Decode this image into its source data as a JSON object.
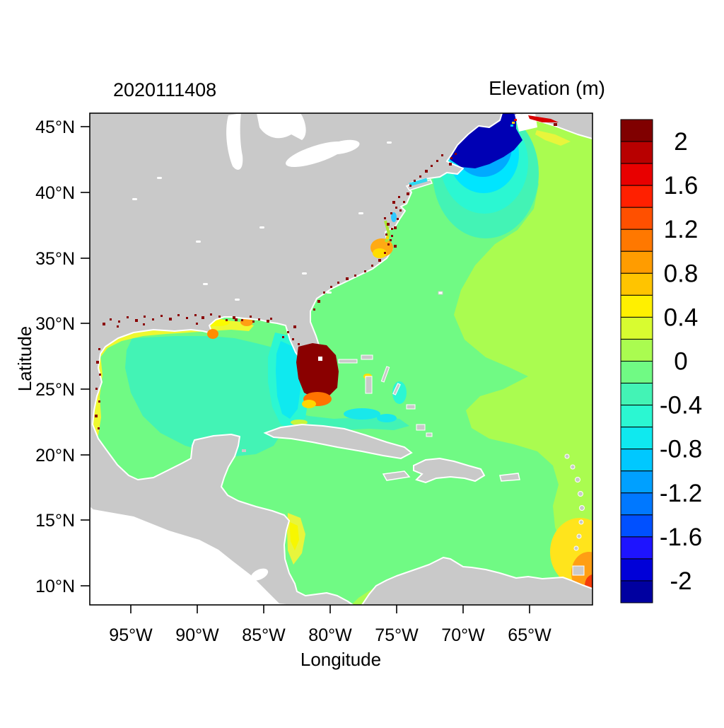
{
  "figure": {
    "timestamp_title": "2020111408",
    "colorbar_title": "Elevation (m)"
  },
  "axes": {
    "x": {
      "label": "Longitude",
      "tick_labels": [
        "95°W",
        "90°W",
        "85°W",
        "80°W",
        "75°W",
        "70°W",
        "65°W"
      ]
    },
    "y": {
      "label": "Latitude",
      "tick_labels": [
        "45°N",
        "40°N",
        "35°N",
        "30°N",
        "25°N",
        "20°N",
        "15°N",
        "10°N"
      ]
    }
  },
  "colorbar": {
    "tick_labels": [
      "2",
      "1.6",
      "1.2",
      "0.8",
      "0.4",
      "0",
      "-0.4",
      "-0.8",
      "-1.2",
      "-1.6",
      "-2"
    ],
    "value_range": [
      -2.2,
      2.2
    ],
    "interval": 0.2,
    "segment_colors_top_to_bottom": [
      "#800000",
      "#B80000",
      "#E80000",
      "#FF2000",
      "#FF5000",
      "#FF7800",
      "#FF9C00",
      "#FFC400",
      "#FFF000",
      "#D8FC30",
      "#AAFC50",
      "#70FA84",
      "#43F3B5",
      "#2BF7D2",
      "#0FE9EF",
      "#00C8FF",
      "#00A0FF",
      "#0078FF",
      "#0050FF",
      "#1E14FF",
      "#0000D8",
      "#0000A0"
    ]
  },
  "colors": {
    "land": "#c9c9c9",
    "outside_domain": "#ffffff",
    "frame": "#000000",
    "atlantic": "#AAFC50",
    "coastal_band": "#70FA84",
    "gulf_interior": "#43F3B5",
    "shelf_cyan": "#0FE9EF",
    "surge_low_navy": "#0000B4",
    "flood_high_darkred": "#8A0000"
  },
  "chart_data": {
    "type": "heatmap",
    "title": "Elevation (m)",
    "timestamp": "2020111408",
    "xlabel": "Longitude",
    "ylabel": "Latitude",
    "x_ticks": [
      "95°W",
      "90°W",
      "85°W",
      "80°W",
      "75°W",
      "70°W",
      "65°W"
    ],
    "y_ticks": [
      "45°N",
      "40°N",
      "35°N",
      "30°N",
      "25°N",
      "20°N",
      "15°N",
      "10°N"
    ],
    "lon_range_deg_west": [
      98.1,
      60.3
    ],
    "lat_range_deg_north": [
      8.5,
      46.0
    ],
    "color_levels_m": {
      "min": -2.2,
      "max": 2.2,
      "step": 0.2
    },
    "legend_position": "right",
    "land_shown_as": "gray",
    "out_of_model_domain_shown_as": "white",
    "regions": [
      {
        "name": "open Atlantic (east/northeast)",
        "approx_value_m": 0.1
      },
      {
        "name": "western Atlantic coastal band",
        "approx_value_m": -0.1
      },
      {
        "name": "Caribbean Sea",
        "approx_value_m": -0.1
      },
      {
        "name": "Gulf of Mexico interior",
        "approx_value_m": -0.3
      },
      {
        "name": "Bay of Campeche",
        "approx_value_m": -0.1
      },
      {
        "name": "West Florida shelf",
        "approx_value_m": -0.7
      },
      {
        "name": "Gulf of Maine / Bay of Fundy set-down",
        "approx_value_m": -2.2
      },
      {
        "name": "Southwest Florida / Everglades flood blob",
        "approx_value_m": 2.2
      },
      {
        "name": "Florida Bay fringe",
        "approx_value_m": 1.1
      },
      {
        "name": "NW Gulf coast strip (Texas-Louisiana)",
        "approx_value_m": 0.45
      },
      {
        "name": "Mississippi delta / Mobile Bay patches",
        "approx_value_m": 1.0
      },
      {
        "name": "Pamlico Sound (North Carolina)",
        "approx_value_m": 0.9
      },
      {
        "name": "Delaware Bay / Long Island Sound",
        "approx_value_m": -0.7
      },
      {
        "name": "shelf southeast of Nova Scotia",
        "approx_value_m": 0.5
      },
      {
        "name": "Minas Basin / upper Bay of Fundy streak",
        "approx_value_m": 1.8
      },
      {
        "name": "Honduras-Nicaragua coast patch",
        "approx_value_m": 0.5
      },
      {
        "name": "Trinidad / Orinoco corner gradient",
        "approx_value_m": 1.2
      },
      {
        "name": "coastal marsh speckles (overland flooding)",
        "approx_value_m": 2.2
      },
      {
        "name": "Bahama banks patches",
        "approx_value_m": -0.7
      }
    ]
  }
}
